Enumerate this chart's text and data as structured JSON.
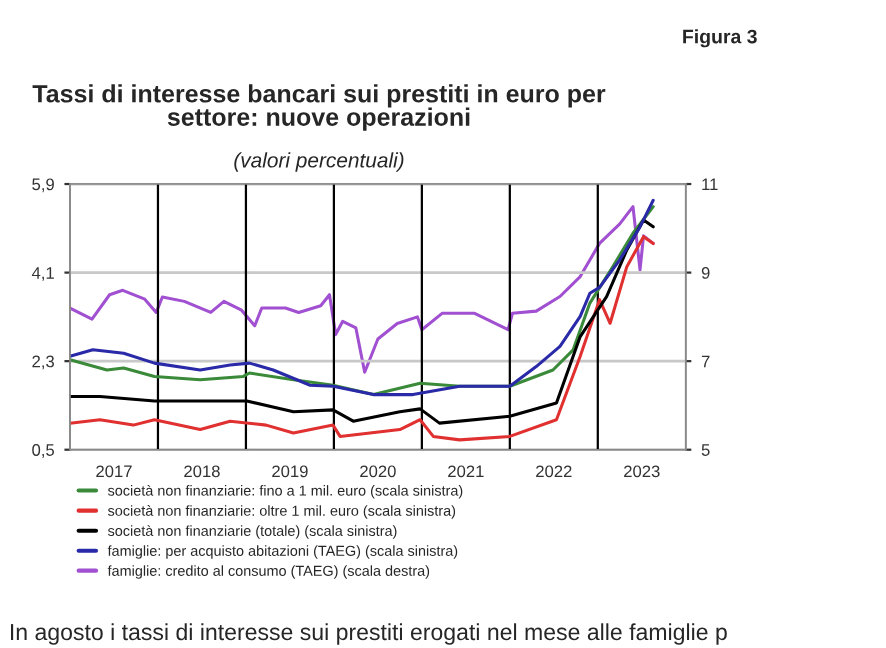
{
  "chart_data": {
    "type": "line",
    "title": "Tassi di interesse bancari sui prestiti in euro per\nsettore: nuove operazioni",
    "subtitle": "(valori percentuali)",
    "annotations": [
      "Figura 3",
      "In agosto i tassi di interesse sui prestiti erogati nel mese alle famiglie p"
    ],
    "xlim": [
      2017,
      2024
    ],
    "xticks": [
      {
        "value": 2017.5,
        "label": "2017"
      },
      {
        "value": 2018.5,
        "label": "2018"
      },
      {
        "value": 2019.5,
        "label": "2019"
      },
      {
        "value": 2020.5,
        "label": "2020"
      },
      {
        "value": 2021.5,
        "label": "2021"
      },
      {
        "value": 2022.5,
        "label": "2022"
      },
      {
        "value": 2023.5,
        "label": "2023"
      }
    ],
    "ylim": [
      0.5,
      5.9
    ],
    "yticks": [
      {
        "value": 0.5,
        "label": "0,5"
      },
      {
        "value": 2.3,
        "label": "2,3"
      },
      {
        "value": 4.1,
        "label": "4,1"
      },
      {
        "value": 5.9,
        "label": "5,9"
      }
    ],
    "y2lim": [
      5,
      11
    ],
    "y2ticks": [
      5,
      7,
      9,
      11
    ],
    "grid": "y",
    "legend": "bottom",
    "line_style": "solid",
    "ref_lines": [
      {
        "axis": "x",
        "value": 2018,
        "color": "#000000"
      },
      {
        "axis": "x",
        "value": 2019,
        "color": "#000000"
      },
      {
        "axis": "x",
        "value": 2020,
        "color": "#000000"
      },
      {
        "axis": "x",
        "value": 2021,
        "color": "#000000"
      },
      {
        "axis": "x",
        "value": 2022,
        "color": "#000000"
      },
      {
        "axis": "x",
        "value": 2023,
        "color": "#000000"
      }
    ],
    "series": [
      {
        "name": "società non finanziarie: fino a 1 mil. euro (scala sinistra)",
        "color": "#3a8a3a",
        "x": [
          2017.0,
          2017.42,
          2017.61,
          2017.96,
          2018.48,
          2018.97,
          2019.04,
          2019.54,
          2019.99,
          2020.45,
          2020.98,
          2021.43,
          2022.0,
          2022.49,
          2022.72,
          2022.91,
          2023.17,
          2023.4,
          2023.63
        ],
        "values": [
          2.33,
          2.12,
          2.16,
          1.99,
          1.92,
          1.99,
          2.06,
          1.92,
          1.81,
          1.62,
          1.85,
          1.79,
          1.79,
          2.12,
          2.53,
          3.48,
          4.22,
          4.9,
          5.44
        ]
      },
      {
        "name": "società non finanziarie: oltre 1 mil. euro (scala sinistra)",
        "color": "#e03030",
        "x": [
          2017.0,
          2017.34,
          2017.72,
          2017.96,
          2018.48,
          2018.82,
          2019.23,
          2019.54,
          2019.99,
          2020.07,
          2020.75,
          2020.98,
          2021.13,
          2021.43,
          2022.0,
          2022.53,
          2022.8,
          2023.02,
          2023.14,
          2023.33,
          2023.52,
          2023.63
        ],
        "values": [
          1.04,
          1.11,
          1.0,
          1.11,
          0.91,
          1.08,
          1.0,
          0.84,
          1.0,
          0.77,
          0.91,
          1.11,
          0.77,
          0.7,
          0.77,
          1.11,
          2.4,
          3.55,
          3.07,
          4.22,
          4.83,
          4.69
        ]
      },
      {
        "name": "società non finanziarie (totale) (scala sinistra)",
        "color": "#000000",
        "x": [
          2017.0,
          2017.34,
          2017.96,
          2018.48,
          2019.01,
          2019.54,
          2019.99,
          2020.22,
          2020.75,
          2020.98,
          2021.2,
          2022.0,
          2022.53,
          2022.8,
          2023.1,
          2023.33,
          2023.52,
          2023.63
        ],
        "values": [
          1.58,
          1.58,
          1.49,
          1.49,
          1.49,
          1.27,
          1.31,
          1.08,
          1.27,
          1.33,
          1.04,
          1.18,
          1.45,
          2.8,
          3.61,
          4.56,
          5.17,
          5.03
        ]
      },
      {
        "name": "famiglie: per acquisto abitazioni (TAEG) (scala sinistra)",
        "color": "#2a2aa8",
        "x": [
          2017.0,
          2017.26,
          2017.61,
          2017.96,
          2018.48,
          2018.82,
          2019.04,
          2019.31,
          2019.73,
          2019.99,
          2020.45,
          2020.9,
          2021.43,
          2022.0,
          2022.3,
          2022.57,
          2022.8,
          2022.91,
          2023.02,
          2023.25,
          2023.48,
          2023.63
        ],
        "values": [
          2.4,
          2.53,
          2.46,
          2.26,
          2.12,
          2.22,
          2.26,
          2.12,
          1.81,
          1.79,
          1.62,
          1.62,
          1.79,
          1.79,
          2.19,
          2.6,
          3.21,
          3.68,
          3.8,
          4.36,
          5.03,
          5.57
        ]
      },
      {
        "name": "famiglie: credito al consumo (TAEG) (scala destra)",
        "color": "#a050d0",
        "axis": "y2",
        "x": [
          2017.0,
          2017.25,
          2017.45,
          2017.6,
          2017.85,
          2017.98,
          2018.05,
          2018.3,
          2018.6,
          2018.75,
          2018.95,
          2019.1,
          2019.18,
          2019.45,
          2019.6,
          2019.85,
          2019.95,
          2020.02,
          2020.1,
          2020.25,
          2020.35,
          2020.5,
          2020.72,
          2020.95,
          2021.0,
          2021.23,
          2021.6,
          2021.98,
          2022.03,
          2022.3,
          2022.57,
          2022.8,
          2023.02,
          2023.25,
          2023.4,
          2023.48,
          2023.52,
          2023.63
        ],
        "values": [
          8.2,
          7.95,
          8.5,
          8.6,
          8.4,
          8.1,
          8.45,
          8.35,
          8.1,
          8.35,
          8.15,
          7.8,
          8.2,
          8.2,
          8.1,
          8.25,
          8.5,
          7.6,
          7.9,
          7.75,
          6.75,
          7.5,
          7.85,
          8.0,
          7.71,
          8.08,
          8.08,
          7.71,
          8.08,
          8.13,
          8.46,
          8.91,
          9.66,
          10.1,
          10.49,
          9.06,
          9.83,
          9.66
        ]
      }
    ]
  }
}
